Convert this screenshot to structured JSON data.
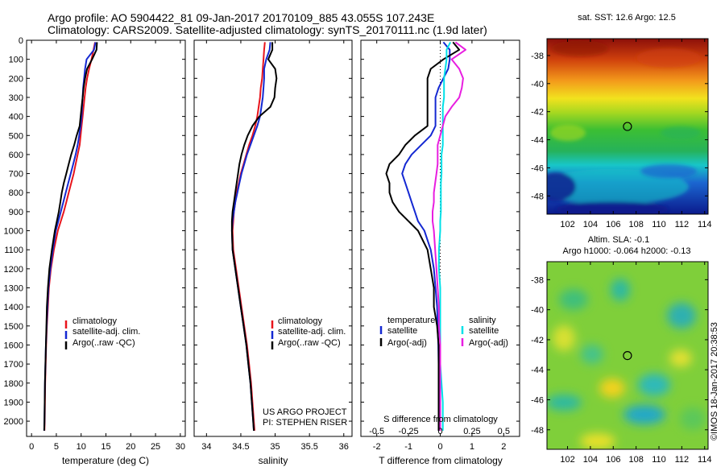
{
  "header": {
    "line1": "Argo profile: AO 5904422_81 09-Jan-2017 20170109_885 43.055S 107.243E",
    "line2": "Climatology: CARS2009. Satellite-adjusted climatology: synTS_20170111.nc (1.9d later)"
  },
  "colors": {
    "climatology": "#e8141c",
    "satellite": "#1428d2",
    "argo": "#000000",
    "sal_satellite": "#00e0e8",
    "sal_argo": "#e81ee0"
  },
  "chart_data": [
    {
      "type": "line",
      "xlabel": "temperature (deg C)",
      "ylabel": "",
      "xlim": [
        -1,
        31
      ],
      "ylim": [
        2080,
        0
      ],
      "xticks": [
        0,
        5,
        10,
        15,
        20,
        25,
        30
      ],
      "yticks": [
        0,
        100,
        200,
        300,
        400,
        500,
        600,
        700,
        800,
        900,
        1000,
        1100,
        1200,
        1300,
        1400,
        1500,
        1600,
        1700,
        1800,
        1900,
        2000
      ],
      "y": [
        10,
        50,
        100,
        150,
        200,
        250,
        300,
        350,
        400,
        450,
        500,
        550,
        600,
        650,
        700,
        750,
        800,
        850,
        900,
        950,
        1000,
        1100,
        1200,
        1300,
        1400,
        1500,
        1600,
        1700,
        1800,
        1900,
        2000,
        2050
      ],
      "series": [
        {
          "name": "climatology",
          "color_key": "climatology",
          "values": [
            12.8,
            12.5,
            12.1,
            11.6,
            11.2,
            10.9,
            10.7,
            10.5,
            10.3,
            10.1,
            9.9,
            9.7,
            9.3,
            8.9,
            8.5,
            8.0,
            7.5,
            7.0,
            6.5,
            5.9,
            5.3,
            4.5,
            3.9,
            3.5,
            3.3,
            3.1,
            2.95,
            2.85,
            2.75,
            2.7,
            2.65,
            2.6
          ]
        },
        {
          "name": "satellite-adj. clim.",
          "color_key": "satellite",
          "values": [
            12.9,
            12.6,
            11.1,
            10.8,
            10.6,
            10.4,
            10.3,
            10.2,
            10.1,
            9.9,
            9.6,
            9.3,
            8.9,
            8.4,
            7.9,
            7.4,
            6.9,
            6.4,
            5.9,
            5.4,
            4.9,
            4.3,
            3.8,
            3.4,
            3.2,
            3.05,
            2.9,
            2.8,
            2.7,
            2.65,
            2.6,
            2.55
          ]
        },
        {
          "name": "Argo(..raw -QC)",
          "color_key": "argo",
          "values": [
            13.2,
            13.1,
            12.2,
            11.2,
            10.8,
            10.5,
            10.3,
            10.1,
            9.9,
            9.7,
            9.1,
            8.6,
            8.0,
            7.5,
            7.0,
            6.5,
            6.1,
            5.8,
            5.5,
            5.1,
            4.7,
            4.1,
            3.6,
            3.3,
            3.1,
            3.0,
            2.9,
            2.8,
            2.7,
            2.65,
            2.6,
            2.55
          ]
        }
      ],
      "legend": "center-left"
    },
    {
      "type": "line",
      "xlabel": "salinity",
      "ylabel": "",
      "xlim": [
        33.82,
        36.12
      ],
      "ylim": [
        2080,
        0
      ],
      "xticks": [
        34,
        34.5,
        35,
        35.5,
        36
      ],
      "y": [
        10,
        50,
        100,
        150,
        200,
        250,
        300,
        350,
        400,
        450,
        500,
        550,
        600,
        650,
        700,
        750,
        800,
        850,
        900,
        950,
        1000,
        1100,
        1200,
        1300,
        1400,
        1500,
        1600,
        1700,
        1800,
        1900,
        2000,
        2050
      ],
      "series": [
        {
          "name": "climatology",
          "color_key": "climatology",
          "values": [
            34.85,
            34.84,
            34.83,
            34.82,
            34.81,
            34.79,
            34.78,
            34.76,
            34.74,
            34.71,
            34.67,
            34.62,
            34.58,
            34.54,
            34.5,
            34.47,
            34.44,
            34.42,
            34.4,
            34.39,
            34.38,
            34.39,
            34.43,
            34.47,
            34.51,
            34.55,
            34.59,
            34.62,
            34.65,
            34.67,
            34.69,
            34.7
          ]
        },
        {
          "name": "satellite-adj. clim.",
          "color_key": "satellite",
          "values": [
            34.93,
            34.92,
            34.87,
            34.84,
            34.84,
            34.83,
            34.82,
            34.8,
            34.78,
            34.74,
            34.69,
            34.64,
            34.59,
            34.55,
            34.51,
            34.48,
            34.45,
            34.42,
            34.4,
            34.38,
            34.37,
            34.38,
            34.42,
            34.46,
            34.5,
            34.54,
            34.58,
            34.61,
            34.64,
            34.66,
            34.68,
            34.69
          ]
        },
        {
          "name": "Argo(..raw -QC)",
          "color_key": "argo",
          "values": [
            34.96,
            34.96,
            34.9,
            35.0,
            35.02,
            35.0,
            34.99,
            34.93,
            34.77,
            34.67,
            34.6,
            34.55,
            34.51,
            34.48,
            34.46,
            34.44,
            34.42,
            34.4,
            34.38,
            34.37,
            34.37,
            34.38,
            34.42,
            34.46,
            34.5,
            34.54,
            34.58,
            34.61,
            34.64,
            34.66,
            34.68,
            34.69
          ]
        }
      ],
      "legend": "center-left",
      "annotations": [
        "US ARGO PROJECT",
        "PI: STEPHEN RISER"
      ]
    },
    {
      "type": "line",
      "xlabel": "T difference from climatology",
      "ylabel": "",
      "xlim": [
        -2.5,
        2.5
      ],
      "ylim": [
        2080,
        0
      ],
      "xticks": [
        -2,
        -1,
        0,
        1,
        2
      ],
      "top_xlabel": "S difference from climatology",
      "top_xticks": [
        -0.5,
        -0.25,
        0,
        0.25,
        0.5
      ],
      "top_xlim": [
        -0.625,
        0.625
      ],
      "y": [
        10,
        50,
        100,
        150,
        200,
        250,
        300,
        350,
        400,
        450,
        500,
        550,
        600,
        650,
        700,
        750,
        800,
        850,
        900,
        950,
        1000,
        1100,
        1200,
        1300,
        1400,
        1500,
        1600,
        1700,
        1800,
        1900,
        2000,
        2050
      ],
      "series": [
        {
          "name": "temperature satellite",
          "axis": "T",
          "color_key": "satellite",
          "values": [
            0.1,
            0.3,
            0.3,
            0.25,
            0.1,
            -0.05,
            -0.15,
            -0.15,
            -0.15,
            -0.15,
            -0.3,
            -0.6,
            -0.9,
            -1.1,
            -1.2,
            -1.1,
            -1.0,
            -0.9,
            -0.8,
            -0.7,
            -0.5,
            -0.3,
            -0.2,
            -0.15,
            -0.1,
            -0.08,
            -0.06,
            -0.05,
            -0.05,
            -0.05,
            -0.05,
            -0.05
          ]
        },
        {
          "name": "temperature Argo(-adj)",
          "axis": "T",
          "color_key": "argo",
          "values": [
            0.4,
            0.6,
            0.1,
            -0.3,
            -0.4,
            -0.4,
            -0.4,
            -0.4,
            -0.4,
            -0.4,
            -0.8,
            -1.1,
            -1.3,
            -1.6,
            -1.7,
            -1.6,
            -1.6,
            -1.5,
            -1.3,
            -1.0,
            -0.7,
            -0.4,
            -0.3,
            -0.2,
            -0.2,
            -0.1,
            -0.05,
            -0.05,
            -0.05,
            -0.05,
            -0.05,
            -0.05
          ]
        },
        {
          "name": "salinity satellite",
          "axis": "S",
          "color_key": "sal_satellite",
          "values": [
            0.08,
            0.05,
            0.05,
            0.04,
            0.03,
            0.03,
            0.03,
            0.02,
            0.02,
            0.02,
            0.02,
            0.02,
            0.01,
            0.01,
            0.01,
            0.005,
            0.005,
            0.005,
            0.005,
            0,
            0,
            -0.01,
            -0.01,
            0,
            0,
            0,
            0,
            0,
            0.01,
            0.02,
            0.02,
            0.02
          ]
        },
        {
          "name": "salinity Argo(-adj)",
          "axis": "S",
          "color_key": "sal_argo",
          "values": [
            0.12,
            0.2,
            0.09,
            0.15,
            0.18,
            0.17,
            0.15,
            0.09,
            0.04,
            0.02,
            0.0,
            -0.02,
            -0.02,
            -0.02,
            -0.03,
            -0.04,
            -0.05,
            -0.05,
            -0.06,
            -0.06,
            -0.05,
            -0.04,
            -0.03,
            -0.02,
            -0.01,
            -0.01,
            0,
            0,
            0,
            0,
            0,
            0
          ]
        }
      ],
      "legend": "center",
      "legend_titles": [
        "temperature",
        "salinity"
      ]
    },
    {
      "type": "heatmap",
      "title": "sat. SST: 12.6  Argo: 12.5",
      "xticks": [
        102,
        104,
        106,
        108,
        110,
        112,
        114
      ],
      "yticks": [
        -38,
        -40,
        -42,
        -44,
        -46,
        -48
      ],
      "xlim": [
        100.2,
        114.3
      ],
      "ylim": [
        -49.3,
        -36.8
      ],
      "marker": {
        "lon": 107.243,
        "lat": -43.055
      }
    },
    {
      "type": "heatmap",
      "title_lines": [
        "Altim. SLA: -0.1",
        "Argo h1000: -0.064 h2000: -0.13"
      ],
      "xticks": [
        102,
        104,
        106,
        108,
        110,
        112,
        114
      ],
      "yticks": [
        -38,
        -40,
        -42,
        -44,
        -46,
        -48
      ],
      "xlim": [
        100.2,
        114.3
      ],
      "ylim": [
        -49.3,
        -36.8
      ],
      "marker": {
        "lon": 107.243,
        "lat": -43.055
      }
    }
  ],
  "legends": {
    "temp_sal": [
      "climatology",
      "satellite-adj. clim.",
      "Argo(..raw -QC)"
    ],
    "diff": {
      "temp_title": "temperature",
      "sal_title": "salinity",
      "satellite": "satellite",
      "argo": "Argo(-adj)"
    }
  },
  "credit": "©IMOS 18-Jan-2017 20:38:53"
}
